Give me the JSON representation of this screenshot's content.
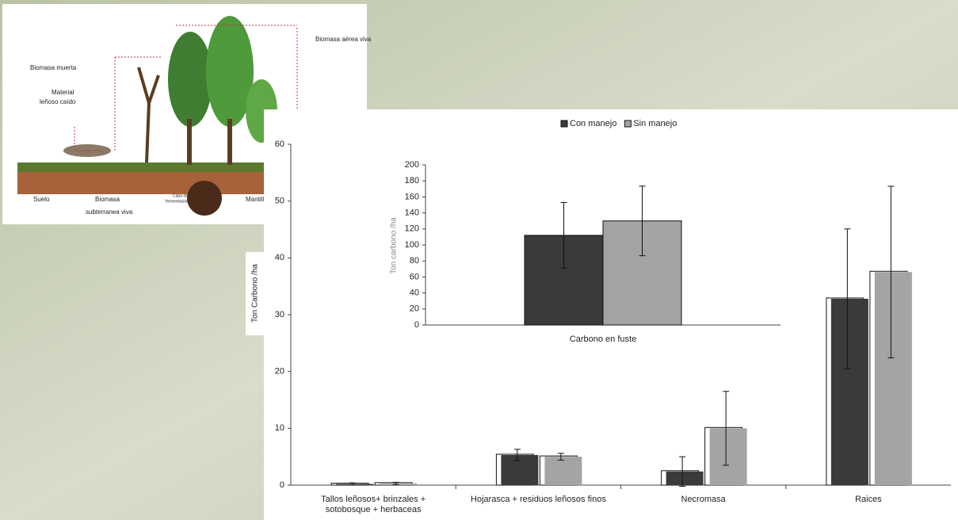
{
  "diagram": {
    "labels": [
      "Biomasa muerta",
      "Material",
      "leñoso caído",
      "Biomasa aérea viva",
      "Suelo",
      "Biomasa",
      "subterranea viva",
      "Capa de",
      "fermentación",
      "Mantillo"
    ]
  },
  "chart_data": [
    {
      "type": "bar",
      "y_label": "Ton Carbono /ha",
      "categories": [
        "Tallos leñosos+ brinzales + sotobosque + herbaceas",
        "Hojarasca + residuos leñosos finos",
        "Necromasa",
        "Raices"
      ],
      "series": [
        {
          "name": "Con manejo",
          "color": "#3a3a3a",
          "values": [
            0.2,
            5.3,
            2.4,
            32.8
          ],
          "errors": [
            0.2,
            1.0,
            2.6,
            12.3
          ]
        },
        {
          "name": "Sin manejo",
          "color": "#a6a3a3",
          "values": [
            0.3,
            5,
            10,
            37.5
          ],
          "errors": [
            0.2,
            0.6,
            6.5,
            15.1
          ]
        }
      ],
      "ylim": [
        0,
        60
      ],
      "yticks": [
        0,
        10,
        20,
        30,
        40,
        50,
        60
      ],
      "legend": "top"
    },
    {
      "type": "bar",
      "y_label": "Ton carbono /ha",
      "categories": [
        "Carbono en fuste"
      ],
      "series": [
        {
          "color": "#3a3a3a",
          "values": [
            112
          ],
          "errors": [
            41
          ]
        },
        {
          "color": "#a6a3a3",
          "values": [
            130
          ],
          "errors": [
            43.5
          ]
        }
      ],
      "ylim": [
        0,
        200
      ],
      "yticks": [
        0,
        20,
        40,
        60,
        80,
        100,
        120,
        140,
        160,
        180,
        200
      ]
    }
  ]
}
